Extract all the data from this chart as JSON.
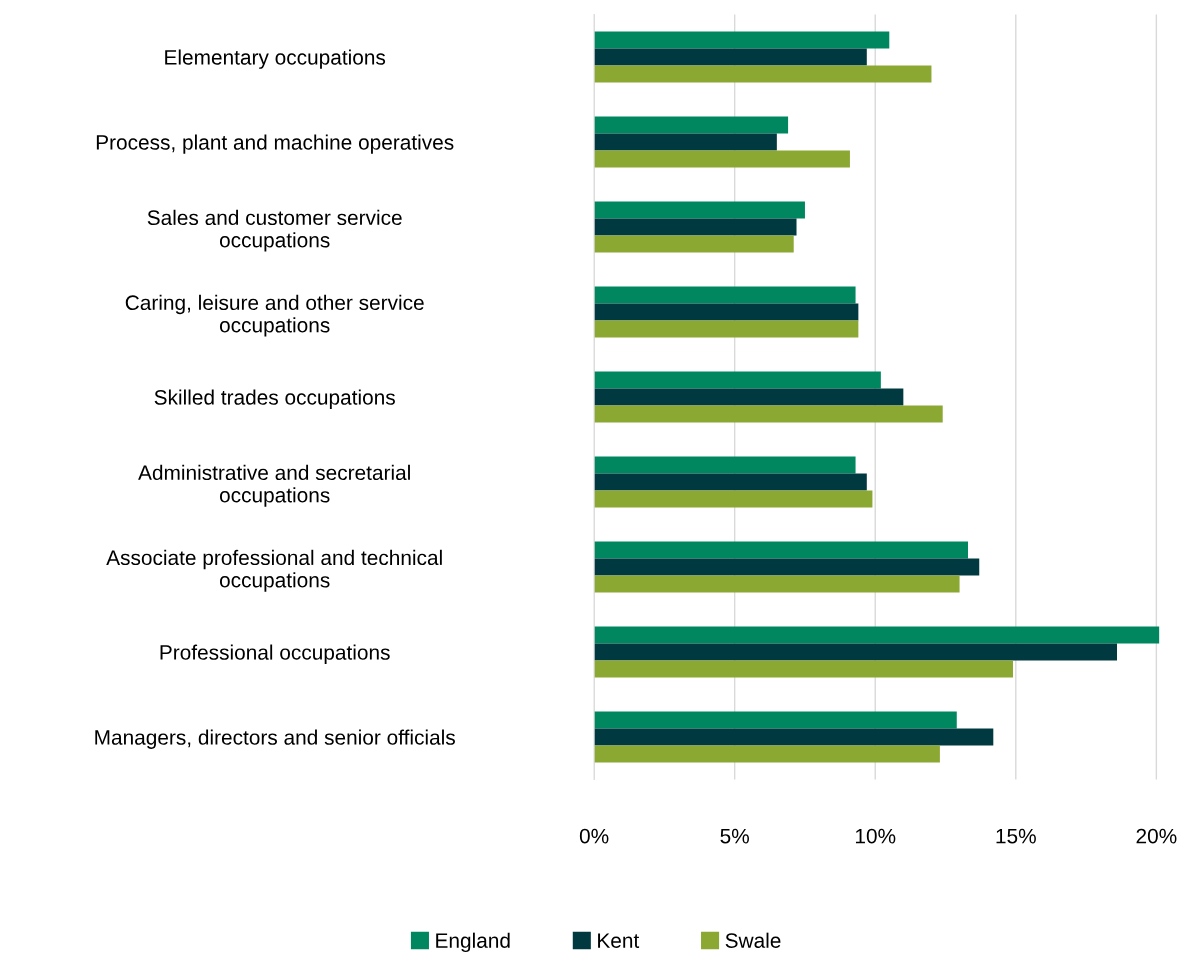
{
  "chart_data": {
    "type": "bar",
    "orientation": "horizontal",
    "categories": [
      "Elementary occupations",
      "Process, plant and machine operatives",
      "Sales and customer service\noccupations",
      "Caring, leisure and other service\noccupations",
      "Skilled trades occupations",
      "Administrative and secretarial\noccupations",
      "Associate professional and technical\noccupations",
      "Professional occupations",
      "Managers, directors and senior officials"
    ],
    "series": [
      {
        "name": "England",
        "color": "#00875f",
        "values": [
          10.5,
          6.9,
          7.5,
          9.3,
          10.2,
          9.3,
          13.3,
          20.1,
          12.9
        ]
      },
      {
        "name": "Kent",
        "color": "#003a40",
        "values": [
          9.7,
          6.5,
          7.2,
          9.4,
          11.0,
          9.7,
          13.7,
          18.6,
          14.2
        ]
      },
      {
        "name": "Swale",
        "color": "#8ba833",
        "values": [
          12.0,
          9.1,
          7.1,
          9.4,
          12.4,
          9.9,
          13.0,
          14.9,
          12.3
        ]
      }
    ],
    "xlim": [
      0,
      20.2
    ],
    "xticks": [
      {
        "value": 0,
        "label": "0%"
      },
      {
        "value": 5,
        "label": "5%"
      },
      {
        "value": 10,
        "label": "10%"
      },
      {
        "value": 15,
        "label": "15%"
      },
      {
        "value": 20,
        "label": "20%"
      }
    ],
    "grid": "x",
    "legend": "bottom"
  }
}
